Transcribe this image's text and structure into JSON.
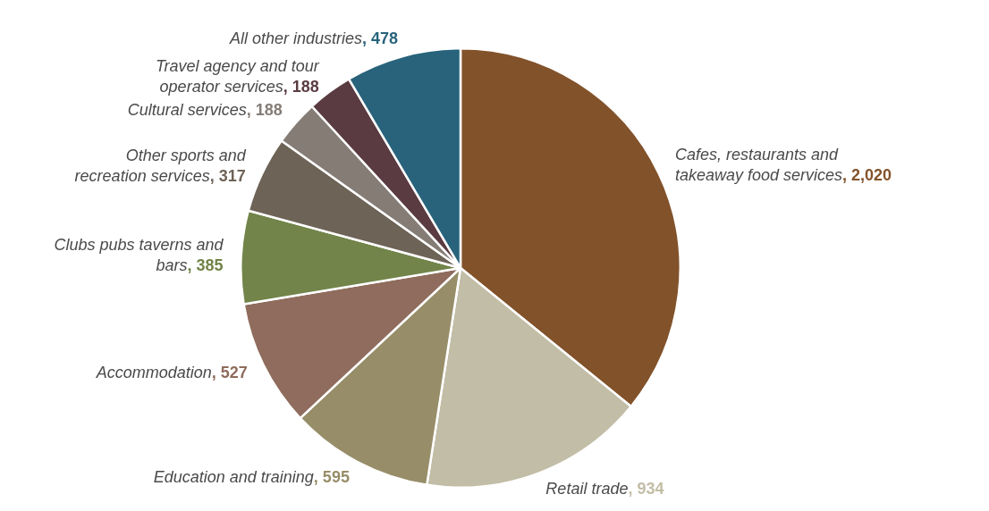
{
  "chart_data": {
    "type": "pie",
    "categories": [
      "Cafes, restaurants and takeaway food services",
      "Retail trade",
      "Education and training",
      "Accommodation",
      "Clubs pubs taverns and bars",
      "Other sports and recreation services",
      "Cultural services",
      "Travel agency and tour operator services",
      "All other industries"
    ],
    "values": [
      2020,
      934,
      595,
      527,
      385,
      317,
      188,
      188,
      478
    ],
    "colors": [
      "#82522a",
      "#c2bda6",
      "#978d68",
      "#8f6c5d",
      "#728449",
      "#6e6357",
      "#857c76",
      "#5a3b42",
      "#28637b"
    ],
    "value_labels": [
      ", 2,020",
      ", 934",
      ", 595",
      ", 527",
      ", 385",
      ", 317",
      ", 188",
      ", 188",
      ", 478"
    ]
  }
}
